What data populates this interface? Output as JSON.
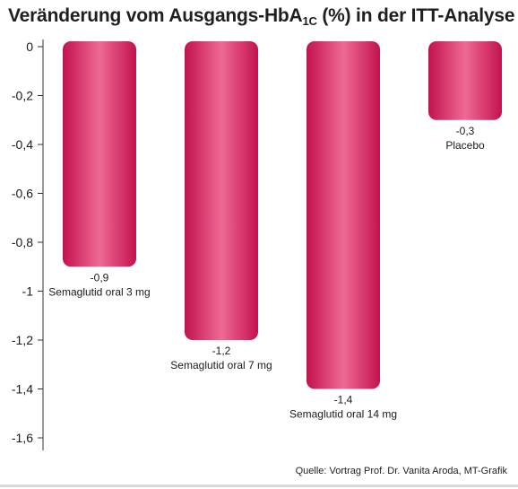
{
  "title": {
    "prefix": "Veränderung vom Ausgangs-HbA",
    "subscript": "1C",
    "suffix": " (%) in der ITT-Analyse"
  },
  "source": "Quelle: Vortrag Prof. Dr. Vanita Aroda, MT-Grafik",
  "colors": {
    "bar_edge": "#c2124f",
    "bar_center": "#ef6a93",
    "axis": "#333333"
  },
  "chart_data": {
    "type": "bar",
    "title": "Veränderung vom Ausgangs-HbA1C (%) in der ITT-Analyse",
    "xlabel": "",
    "ylabel": "",
    "ylim": [
      -1.6,
      0
    ],
    "yticks": [
      0,
      -0.2,
      -0.4,
      -0.6,
      -0.8,
      -1,
      -1.2,
      -1.4,
      -1.6
    ],
    "ytick_labels": [
      "0",
      "-0,2",
      "-0,4",
      "-0,6",
      "-0,8",
      "-1",
      "-1,2",
      "-1,4",
      "-1,6"
    ],
    "categories": [
      "Semaglutid oral 3 mg",
      "Semaglutid oral 7 mg",
      "Semaglutid oral 14 mg",
      "Placebo"
    ],
    "values": [
      -0.9,
      -1.2,
      -1.4,
      -0.3
    ],
    "value_labels": [
      "-0,9",
      "-1,2",
      "-1,4",
      "-0,3"
    ],
    "grid": false
  }
}
